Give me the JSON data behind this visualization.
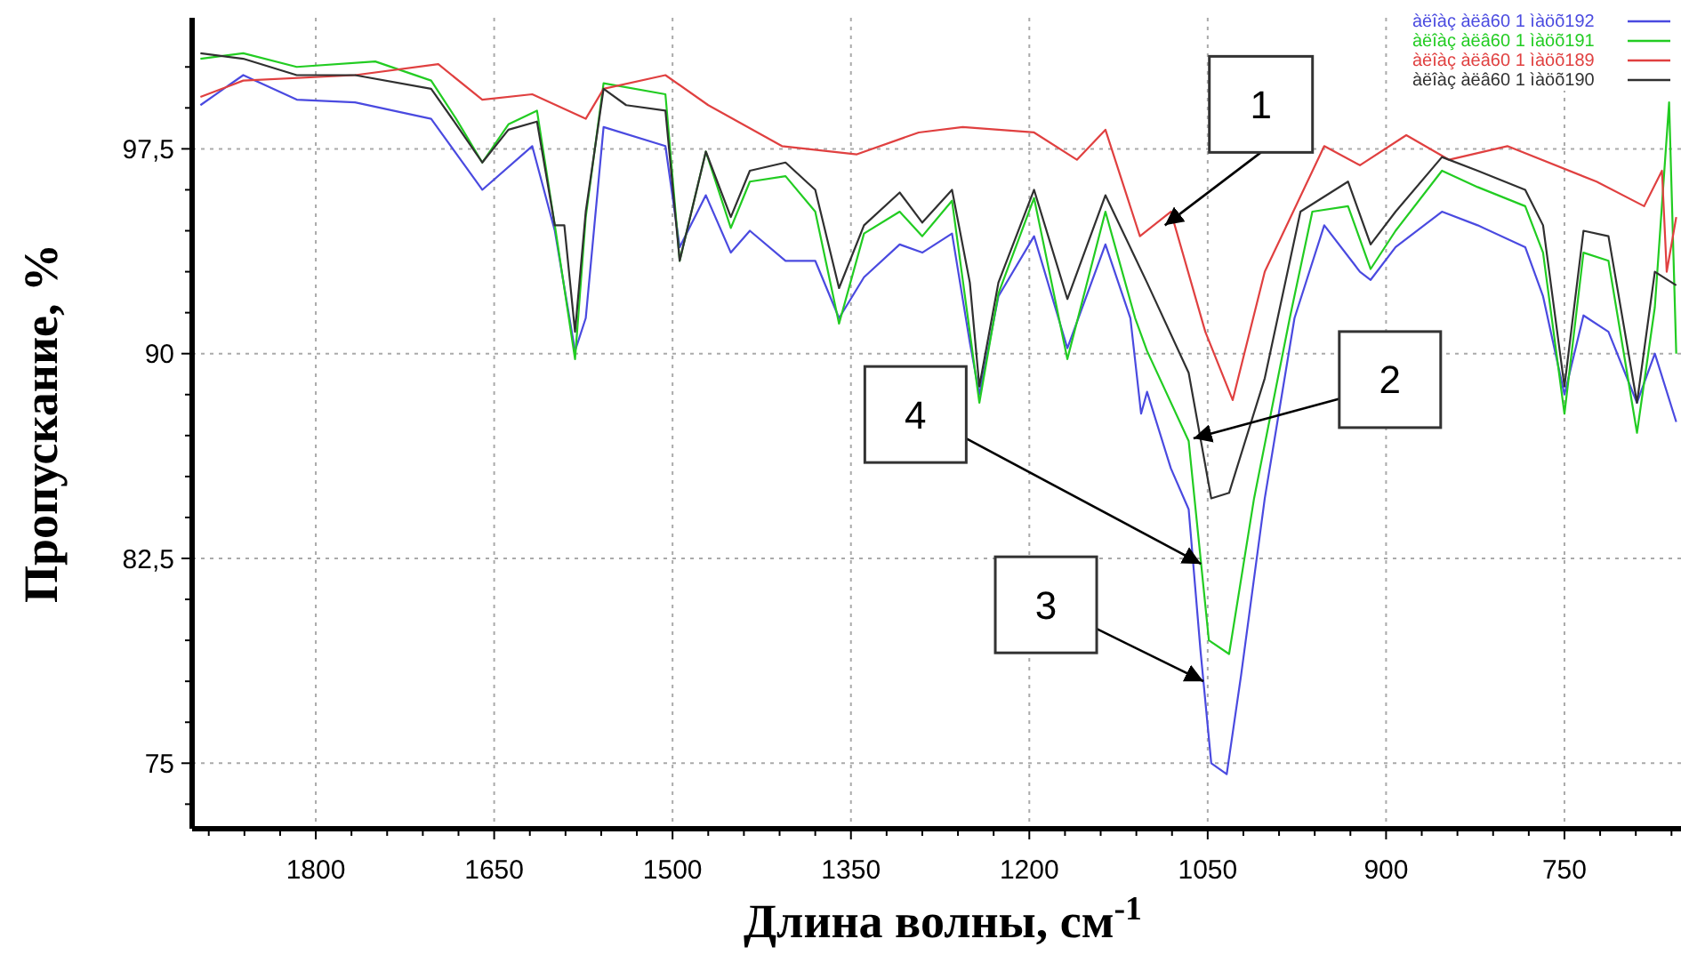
{
  "chart_data": {
    "type": "line",
    "xlabel": "Длина волны, см$^{-1}$",
    "ylabel": "Пропускание, %",
    "xlim": [
      1904,
      652
    ],
    "ylim": [
      72.6,
      102.3
    ],
    "xticks": [
      {
        "value": 1890,
        "label": null
      },
      {
        "value": 1860,
        "label": null
      },
      {
        "value": 1830,
        "label": null
      },
      1800,
      {
        "value": 1770,
        "label": null
      },
      {
        "value": 1740,
        "label": null
      },
      {
        "value": 1710,
        "label": null
      },
      {
        "value": 1680,
        "label": null
      },
      1650,
      {
        "value": 1620,
        "label": null
      },
      {
        "value": 1590,
        "label": null
      },
      {
        "value": 1560,
        "label": null
      },
      {
        "value": 1530,
        "label": null
      },
      1500,
      {
        "value": 1470,
        "label": null
      },
      {
        "value": 1440,
        "label": null
      },
      {
        "value": 1410,
        "label": null
      },
      {
        "value": 1380,
        "label": null
      },
      1350,
      {
        "value": 1320,
        "label": null
      },
      {
        "value": 1290,
        "label": null
      },
      {
        "value": 1260,
        "label": null
      },
      {
        "value": 1230,
        "label": null
      },
      1200,
      {
        "value": 1170,
        "label": null
      },
      {
        "value": 1140,
        "label": null
      },
      {
        "value": 1110,
        "label": null
      },
      {
        "value": 1080,
        "label": null
      },
      1050,
      {
        "value": 1020,
        "label": null
      },
      {
        "value": 990,
        "label": null
      },
      {
        "value": 960,
        "label": null
      },
      {
        "value": 930,
        "label": null
      },
      900,
      {
        "value": 870,
        "label": null
      },
      {
        "value": 840,
        "label": null
      },
      {
        "value": 810,
        "label": null
      },
      {
        "value": 780,
        "label": null
      },
      750,
      {
        "value": 720,
        "label": null
      },
      {
        "value": 690,
        "label": null
      },
      {
        "value": 660,
        "label": null
      }
    ],
    "yticks": [
      {
        "value": 73.5,
        "label": null
      },
      {
        "value": 75,
        "label": "75"
      },
      {
        "value": 76.5,
        "label": null
      },
      {
        "value": 78,
        "label": null
      },
      {
        "value": 79.5,
        "label": null
      },
      {
        "value": 81,
        "label": null
      },
      {
        "value": 82.5,
        "label": "82,5"
      },
      {
        "value": 84,
        "label": null
      },
      {
        "value": 85.5,
        "label": null
      },
      {
        "value": 87,
        "label": null
      },
      {
        "value": 88.5,
        "label": null
      },
      {
        "value": 90,
        "label": "90"
      },
      {
        "value": 91.5,
        "label": null
      },
      {
        "value": 93,
        "label": null
      },
      {
        "value": 94.5,
        "label": null
      },
      {
        "value": 96,
        "label": null
      },
      {
        "value": 97.5,
        "label": "97,5"
      },
      {
        "value": 99,
        "label": null
      },
      {
        "value": 100.5,
        "label": null
      }
    ],
    "grid": true,
    "legend": "top right",
    "line_style": "solid",
    "marker": "none",
    "series": [
      {
        "name": "àëîàç àëâ60 1 ìàöõ192",
        "color": "#4a4ae0",
        "x": [
          1897,
          1861,
          1816,
          1767,
          1703,
          1660,
          1618,
          1599,
          1582,
          1573,
          1558,
          1506,
          1494,
          1472,
          1451,
          1435,
          1405,
          1380,
          1360,
          1339,
          1309,
          1290,
          1265,
          1250,
          1242,
          1226,
          1196,
          1168,
          1136,
          1115,
          1106,
          1101,
          1081,
          1066,
          1056,
          1047,
          1034,
          1022,
          1002,
          977,
          952,
          922,
          913,
          892,
          853,
          823,
          783,
          768,
          750,
          734,
          713,
          689,
          674,
          656
        ],
        "values": [
          99.1,
          100.2,
          99.3,
          99.2,
          98.6,
          96.0,
          97.6,
          94.5,
          90.1,
          91.3,
          98.3,
          97.6,
          93.9,
          95.8,
          93.7,
          94.5,
          93.4,
          93.4,
          91.3,
          92.8,
          94.0,
          93.7,
          94.4,
          90.4,
          88.5,
          92.1,
          94.3,
          90.2,
          94.0,
          91.3,
          87.8,
          88.6,
          85.8,
          84.3,
          79.1,
          75.0,
          74.6,
          78.2,
          84.7,
          91.3,
          94.7,
          93.0,
          92.7,
          93.9,
          95.2,
          94.7,
          93.9,
          92.1,
          88.5,
          91.4,
          90.8,
          88.2,
          90.0,
          87.5
        ]
      },
      {
        "name": "àëîàç àëâ60 1 ìàöõ191",
        "color": "#22cc22",
        "x": [
          1897,
          1861,
          1816,
          1750,
          1703,
          1682,
          1660,
          1638,
          1614,
          1599,
          1582,
          1573,
          1558,
          1506,
          1494,
          1472,
          1451,
          1435,
          1405,
          1380,
          1360,
          1339,
          1309,
          1290,
          1265,
          1242,
          1226,
          1196,
          1168,
          1136,
          1111,
          1101,
          1066,
          1049,
          1032,
          1011,
          981,
          962,
          932,
          913,
          892,
          853,
          823,
          783,
          768,
          750,
          734,
          713,
          689,
          674,
          662,
          656
        ],
        "values": [
          100.8,
          101.0,
          100.5,
          100.7,
          100.0,
          98.6,
          97.0,
          98.4,
          98.9,
          94.7,
          89.8,
          95.0,
          99.9,
          99.5,
          93.4,
          97.4,
          94.6,
          96.3,
          96.5,
          95.2,
          91.1,
          94.4,
          95.2,
          94.3,
          95.6,
          88.2,
          92.2,
          95.7,
          89.8,
          95.2,
          91.3,
          90.1,
          86.8,
          79.5,
          79.0,
          84.7,
          91.3,
          95.2,
          95.4,
          93.1,
          94.5,
          96.7,
          96.1,
          95.4,
          93.7,
          87.8,
          93.7,
          93.4,
          87.1,
          91.7,
          99.2,
          90.0
        ]
      },
      {
        "name": "àëîàç àëâ60 1 ìàöõ189",
        "color": "#e04040",
        "x": [
          1897,
          1861,
          1767,
          1697,
          1660,
          1618,
          1573,
          1558,
          1506,
          1470,
          1408,
          1345,
          1293,
          1256,
          1196,
          1160,
          1136,
          1107,
          1081,
          1052,
          1029,
          1002,
          952,
          922,
          883,
          847,
          798,
          723,
          683,
          668,
          664,
          656
        ],
        "values": [
          99.4,
          100.0,
          100.2,
          100.6,
          99.3,
          99.5,
          98.6,
          99.7,
          100.2,
          99.1,
          97.6,
          97.3,
          98.1,
          98.3,
          98.1,
          97.1,
          98.2,
          94.3,
          95.2,
          90.8,
          88.3,
          93.0,
          97.6,
          96.9,
          98.0,
          97.1,
          97.6,
          96.3,
          95.4,
          96.7,
          93.0,
          95.0
        ]
      },
      {
        "name": "àëîàç àëâ60 1 ìàöõ190",
        "color": "#303030",
        "x": [
          1897,
          1861,
          1816,
          1767,
          1703,
          1682,
          1660,
          1638,
          1614,
          1599,
          1591,
          1582,
          1573,
          1558,
          1539,
          1506,
          1494,
          1472,
          1451,
          1435,
          1405,
          1380,
          1360,
          1339,
          1309,
          1290,
          1265,
          1250,
          1242,
          1226,
          1196,
          1168,
          1136,
          1101,
          1066,
          1047,
          1032,
          1002,
          972,
          932,
          913,
          892,
          853,
          823,
          783,
          768,
          750,
          734,
          713,
          689,
          674,
          656
        ],
        "values": [
          101.0,
          100.8,
          100.2,
          100.2,
          99.7,
          98.4,
          97.0,
          98.2,
          98.5,
          94.7,
          94.7,
          90.8,
          95.2,
          99.7,
          99.1,
          98.9,
          93.4,
          97.4,
          95.0,
          96.7,
          97.0,
          96.0,
          92.4,
          94.7,
          95.9,
          94.8,
          96.0,
          92.6,
          88.8,
          92.6,
          96.0,
          92.0,
          95.8,
          92.6,
          89.3,
          84.7,
          84.9,
          89.1,
          95.2,
          96.3,
          94.0,
          95.2,
          97.2,
          96.7,
          96.0,
          94.7,
          88.8,
          94.5,
          94.3,
          88.2,
          93.0,
          92.5
        ]
      }
    ],
    "annotations": [
      {
        "text": "1",
        "x": 1086,
        "y": 94.7
      },
      {
        "text": "2",
        "x": 1062,
        "y": 86.9
      },
      {
        "text": "4",
        "x": 1055.6,
        "y": 82.3
      },
      {
        "text": "3",
        "x": 1053.6,
        "y": 78.0
      }
    ]
  }
}
